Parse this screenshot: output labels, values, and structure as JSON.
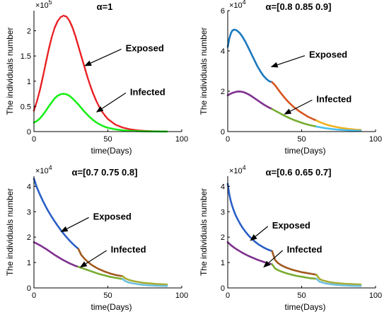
{
  "chart_data": [
    {
      "type": "line",
      "title": "α=1",
      "xlabel": "time(Days)",
      "ylabel": "The individuals number",
      "xlim": [
        0,
        100
      ],
      "ylim": [
        0,
        240000
      ],
      "x_ticks": [
        0,
        50,
        100
      ],
      "y_ticks": [
        0,
        0.5,
        1,
        1.5,
        2
      ],
      "y_exponent_base": "×10",
      "y_exponent": "5",
      "y_multiplier": 100000,
      "series": [
        {
          "name": "Exposed",
          "color": "#e8191c",
          "style": "dots",
          "x": [
            0,
            2,
            4,
            6,
            8,
            10,
            12,
            14,
            16,
            18,
            20,
            22,
            24,
            26,
            28,
            30,
            32,
            34,
            36,
            38,
            40,
            42,
            44,
            46,
            48,
            50,
            55,
            60,
            65,
            70,
            75,
            80,
            85,
            90
          ],
          "y": [
            42000,
            60000,
            82000,
            108000,
            136000,
            163000,
            187000,
            206000,
            219000,
            227000,
            230000,
            228000,
            220000,
            207000,
            190000,
            170000,
            150000,
            130000,
            110000,
            92000,
            76000,
            62000,
            50000,
            40000,
            32000,
            25000,
            14000,
            8000,
            4500,
            2500,
            1400,
            800,
            400,
            200
          ]
        },
        {
          "name": "Infected",
          "color": "#19ef19",
          "style": "line",
          "x": [
            0,
            2,
            4,
            6,
            8,
            10,
            12,
            14,
            16,
            18,
            20,
            22,
            24,
            26,
            28,
            30,
            32,
            34,
            36,
            38,
            40,
            42,
            44,
            46,
            48,
            50,
            55,
            60,
            65,
            70,
            75,
            80,
            85,
            90
          ],
          "y": [
            18000,
            21000,
            26000,
            33000,
            41000,
            50000,
            58000,
            66000,
            71000,
            74000,
            75000,
            74000,
            71000,
            66000,
            60000,
            54000,
            47000,
            40000,
            34000,
            28000,
            23000,
            18500,
            15000,
            12000,
            9500,
            7500,
            4500,
            2500,
            1400,
            800,
            450,
            250,
            150,
            80
          ]
        }
      ],
      "annotations": [
        {
          "text": "Exposed",
          "x": 62,
          "y": 165000,
          "arrow_to": [
            34,
            130000
          ]
        },
        {
          "text": "Infected",
          "x": 65,
          "y": 78000,
          "arrow_to": [
            42,
            38000
          ]
        }
      ]
    },
    {
      "type": "line",
      "title": "α=[0.8 0.85 0.9]",
      "xlabel": "time(Days)",
      "ylabel": "The individuals number",
      "xlim": [
        0,
        100
      ],
      "ylim": [
        0,
        60000
      ],
      "x_ticks": [
        0,
        50,
        100
      ],
      "y_ticks": [
        0,
        2,
        4,
        6
      ],
      "y_exponent_base": "×10",
      "y_exponent": "4",
      "y_multiplier": 10000,
      "series": [
        {
          "name": "Exposed",
          "color": "#1a79be",
          "style": "line",
          "x": [
            0,
            1,
            2,
            3,
            4,
            5,
            6,
            8,
            10,
            12,
            14,
            16,
            18,
            20,
            22,
            24,
            26,
            28,
            30
          ],
          "y": [
            42000,
            46000,
            48500,
            50000,
            50500,
            50500,
            50200,
            49000,
            47000,
            44500,
            41500,
            38500,
            35500,
            32500,
            30000,
            27800,
            26200,
            25000,
            24500
          ]
        },
        {
          "name": "",
          "color": "#d6541e",
          "style": "line",
          "x": [
            30,
            32,
            34,
            36,
            38,
            40,
            42,
            44,
            46,
            48,
            50,
            52,
            54,
            56,
            58,
            60
          ],
          "y": [
            24500,
            23000,
            21000,
            19000,
            17200,
            15500,
            14000,
            12600,
            11400,
            10300,
            9300,
            8400,
            7500,
            6800,
            6100,
            5500
          ]
        },
        {
          "name": "",
          "color": "#f0b21f",
          "style": "line",
          "x": [
            60,
            62,
            64,
            66,
            68,
            70,
            72,
            74,
            76,
            78,
            80,
            82,
            84,
            86,
            88,
            90
          ],
          "y": [
            5500,
            4800,
            4200,
            3700,
            3200,
            2800,
            2500,
            2200,
            1900,
            1700,
            1500,
            1300,
            1150,
            1000,
            900,
            800
          ]
        },
        {
          "name": "Infected",
          "color": "#7e2f8e",
          "style": "line",
          "x": [
            0,
            2,
            4,
            6,
            8,
            10,
            12,
            14,
            16,
            18,
            20,
            22,
            24,
            26,
            28,
            30
          ],
          "y": [
            18000,
            18800,
            19400,
            19800,
            19900,
            19700,
            19200,
            18500,
            17600,
            16600,
            15600,
            14600,
            13600,
            12700,
            11900,
            11200
          ]
        },
        {
          "name": "",
          "color": "#77ac30",
          "style": "line",
          "x": [
            30,
            32,
            34,
            36,
            38,
            40,
            42,
            44,
            46,
            48,
            50,
            52,
            54,
            56,
            58,
            60
          ],
          "y": [
            11200,
            10400,
            9600,
            8800,
            8000,
            7300,
            6600,
            6000,
            5400,
            4900,
            4400,
            3900,
            3500,
            3100,
            2800,
            2500
          ]
        },
        {
          "name": "",
          "color": "#4dbeee",
          "style": "line",
          "x": [
            60,
            62,
            64,
            66,
            68,
            70,
            72,
            74,
            76,
            78,
            80,
            82,
            84,
            86,
            88,
            90
          ],
          "y": [
            2500,
            2200,
            1950,
            1700,
            1500,
            1300,
            1150,
            1000,
            900,
            800,
            700,
            620,
            550,
            490,
            440,
            400
          ]
        }
      ],
      "annotations": [
        {
          "text": "Exposed",
          "x": 55,
          "y": 38000,
          "arrow_to": [
            29,
            32000
          ]
        },
        {
          "text": "Infected",
          "x": 60,
          "y": 16000,
          "arrow_to": [
            38,
            8500
          ]
        }
      ]
    },
    {
      "type": "line",
      "title": "α=[0.7 0.75 0.8]",
      "xlabel": "time(Days)",
      "ylabel": "The individuals number",
      "xlim": [
        0,
        100
      ],
      "ylim": [
        0,
        44000
      ],
      "x_ticks": [
        0,
        50,
        100
      ],
      "y_ticks": [
        0,
        1,
        2,
        3,
        4
      ],
      "y_exponent_base": "×10",
      "y_exponent": "4",
      "y_multiplier": 10000,
      "series": [
        {
          "name": "Exposed",
          "color": "#2a5fc6",
          "style": "line",
          "x": [
            0,
            2,
            4,
            6,
            8,
            10,
            12,
            14,
            16,
            18,
            20,
            22,
            24,
            26,
            28,
            30
          ],
          "y": [
            43000,
            39500,
            36800,
            34300,
            32000,
            29900,
            28000,
            26200,
            24500,
            22900,
            21400,
            20000,
            18700,
            17500,
            16400,
            15400
          ]
        },
        {
          "name": "",
          "color": "#a0591f",
          "style": "line",
          "x": [
            30,
            32,
            34,
            36,
            38,
            40,
            42,
            44,
            46,
            48,
            50,
            52,
            54,
            56,
            58,
            60
          ],
          "y": [
            15400,
            13000,
            11600,
            10500,
            9500,
            8700,
            8000,
            7400,
            6900,
            6400,
            6000,
            5600,
            5300,
            5000,
            4800,
            4600
          ]
        },
        {
          "name": "",
          "color": "#a6ad32",
          "style": "line",
          "x": [
            60,
            62,
            64,
            66,
            68,
            70,
            72,
            74,
            76,
            78,
            80,
            82,
            84,
            86,
            88,
            90
          ],
          "y": [
            4600,
            3700,
            3200,
            2900,
            2600,
            2400,
            2200,
            2000,
            1900,
            1800,
            1700,
            1600,
            1500,
            1450,
            1400,
            1350
          ]
        },
        {
          "name": "Infected",
          "color": "#7e2f8e",
          "style": "line",
          "x": [
            0,
            2,
            4,
            6,
            8,
            10,
            12,
            14,
            16,
            18,
            20,
            22,
            24,
            26,
            28,
            30
          ],
          "y": [
            18000,
            17400,
            16800,
            16100,
            15400,
            14600,
            13800,
            13000,
            12300,
            11600,
            10900,
            10300,
            9700,
            9200,
            8700,
            8300
          ]
        },
        {
          "name": "",
          "color": "#77ac30",
          "style": "line",
          "x": [
            30,
            32,
            34,
            36,
            38,
            40,
            42,
            44,
            46,
            48,
            50,
            52,
            54,
            56,
            58,
            60
          ],
          "y": [
            8300,
            7900,
            7500,
            7100,
            6700,
            6300,
            5900,
            5500,
            5200,
            4900,
            4600,
            4300,
            4100,
            3900,
            3700,
            3500
          ]
        },
        {
          "name": "",
          "color": "#6fbfe0",
          "style": "line",
          "x": [
            60,
            62,
            64,
            66,
            68,
            70,
            72,
            74,
            76,
            78,
            80,
            82,
            84,
            86,
            88,
            90
          ],
          "y": [
            3500,
            2600,
            2200,
            1900,
            1700,
            1500,
            1350,
            1200,
            1100,
            1000,
            950,
            900,
            850,
            800,
            780,
            760
          ]
        }
      ],
      "annotations": [
        {
          "text": "Exposed",
          "x": 40,
          "y": 28000,
          "arrow_to": [
            18,
            22000
          ]
        },
        {
          "text": "Infected",
          "x": 52,
          "y": 15000,
          "arrow_to": [
            31,
            8000
          ]
        }
      ]
    },
    {
      "type": "line",
      "title": "α=[0.6 0.65 0.7]",
      "xlabel": "time(Days)",
      "ylabel": "The individuals number",
      "xlim": [
        0,
        100
      ],
      "ylim": [
        0,
        44000
      ],
      "x_ticks": [
        0,
        50,
        100
      ],
      "y_ticks": [
        0,
        1,
        2,
        3,
        4
      ],
      "y_exponent_base": "×10",
      "y_exponent": "4",
      "y_multiplier": 10000,
      "series": [
        {
          "name": "Exposed",
          "color": "#2a5fc6",
          "style": "line",
          "x": [
            0,
            1,
            2,
            3,
            4,
            5,
            6,
            8,
            10,
            12,
            14,
            16,
            18,
            20,
            22,
            24,
            26,
            28,
            30
          ],
          "y": [
            41000,
            37000,
            34300,
            32300,
            30600,
            29100,
            27800,
            25600,
            23700,
            22100,
            20700,
            19500,
            18400,
            17500,
            16700,
            16000,
            15400,
            14900,
            14500
          ]
        },
        {
          "name": "",
          "color": "#a0591f",
          "style": "line",
          "x": [
            30,
            32,
            34,
            36,
            38,
            40,
            42,
            44,
            46,
            48,
            50,
            52,
            54,
            56,
            58,
            60
          ],
          "y": [
            14500,
            11000,
            9800,
            9000,
            8400,
            7900,
            7500,
            7100,
            6800,
            6500,
            6200,
            6000,
            5800,
            5600,
            5400,
            5200
          ]
        },
        {
          "name": "",
          "color": "#a6ad32",
          "style": "line",
          "x": [
            60,
            62,
            64,
            66,
            68,
            70,
            72,
            74,
            76,
            78,
            80,
            82,
            84,
            86,
            88,
            90
          ],
          "y": [
            5200,
            3600,
            3000,
            2700,
            2400,
            2200,
            2000,
            1900,
            1800,
            1700,
            1600,
            1550,
            1500,
            1450,
            1400,
            1350
          ]
        },
        {
          "name": "Infected",
          "color": "#7e2f8e",
          "style": "line",
          "x": [
            0,
            2,
            4,
            6,
            8,
            10,
            12,
            14,
            16,
            18,
            20,
            22,
            24,
            26,
            28,
            30
          ],
          "y": [
            18000,
            16900,
            16000,
            15200,
            14500,
            13800,
            13200,
            12600,
            12100,
            11600,
            11100,
            10700,
            10300,
            9900,
            9600,
            9300
          ]
        },
        {
          "name": "",
          "color": "#77ac30",
          "style": "line",
          "x": [
            30,
            32,
            34,
            36,
            38,
            40,
            42,
            44,
            46,
            48,
            50,
            52,
            54,
            56,
            58,
            60
          ],
          "y": [
            9300,
            7700,
            7000,
            6500,
            6100,
            5700,
            5400,
            5100,
            4800,
            4600,
            4400,
            4200,
            4000,
            3800,
            3700,
            3600
          ]
        },
        {
          "name": "",
          "color": "#6fbfe0",
          "style": "line",
          "x": [
            60,
            62,
            64,
            66,
            68,
            70,
            72,
            74,
            76,
            78,
            80,
            82,
            84,
            86,
            88,
            90
          ],
          "y": [
            3600,
            2500,
            2100,
            1800,
            1600,
            1450,
            1300,
            1200,
            1100,
            1000,
            950,
            900,
            850,
            800,
            780,
            760
          ]
        }
      ],
      "annotations": [
        {
          "text": "Exposed",
          "x": 30,
          "y": 24500,
          "arrow_to": [
            15,
            18500
          ]
        },
        {
          "text": "Infected",
          "x": 40,
          "y": 15000,
          "arrow_to": [
            24,
            8000
          ]
        }
      ]
    }
  ]
}
